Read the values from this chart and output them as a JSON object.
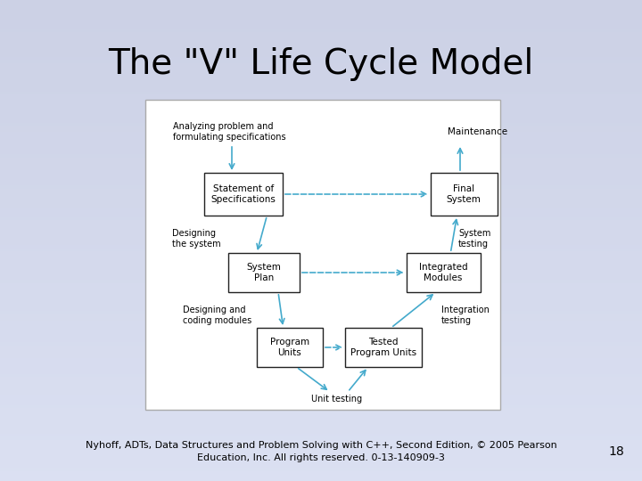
{
  "title": "The \"V\" Life Cycle Model",
  "title_fontsize": 28,
  "background_color": "#c8ccde",
  "diagram_bg": "#ffffff",
  "box_edge_color": "#222222",
  "arrow_color": "#44aacc",
  "footer_line1": "Nyhoff, ADTs, Data Structures and Problem Solving with C++, Second Edition, © 2005 Pearson",
  "footer_line2": "Education, Inc. All rights reserved. 0-13-140909-3",
  "footer_fontsize": 8,
  "page_number": "18"
}
